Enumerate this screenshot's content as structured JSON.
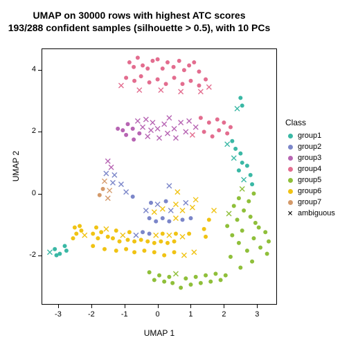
{
  "title_line1": "UMAP on 30000 rows with highest ATC scores",
  "title_line2": "193/288 confident samples (silhouette > 0.5), with 10 PCs",
  "xlabel": "UMAP 1",
  "ylabel": "UMAP 2",
  "legend_title": "Class",
  "chart": {
    "type": "scatter",
    "xlim": [
      -3.5,
      3.6
    ],
    "ylim": [
      -3.6,
      4.7
    ],
    "xticks": [
      -3,
      -2,
      -1,
      0,
      1,
      2,
      3
    ],
    "yticks": [
      -2,
      0,
      2,
      4
    ],
    "background_color": "#ffffff",
    "border_color": "#000000",
    "tick_length": 5,
    "label_fontsize": 12,
    "tick_fontsize": 11,
    "title_fontsize": 14,
    "marker_size": 6,
    "classes": [
      {
        "id": "group1",
        "label": "group1",
        "color": "#3ab8a5",
        "marker": "dot"
      },
      {
        "id": "group2",
        "label": "group2",
        "color": "#7b86c9",
        "marker": "dot"
      },
      {
        "id": "group3",
        "label": "group3",
        "color": "#b765b3",
        "marker": "dot"
      },
      {
        "id": "group4",
        "label": "group4",
        "color": "#e36d8f",
        "marker": "dot"
      },
      {
        "id": "group5",
        "label": "group5",
        "color": "#8fbf3a",
        "marker": "dot"
      },
      {
        "id": "group6",
        "label": "group6",
        "color": "#f0c314",
        "marker": "dot"
      },
      {
        "id": "group7",
        "label": "group7",
        "color": "#d49a6a",
        "marker": "dot"
      },
      {
        "id": "ambiguous",
        "label": "ambiguous",
        "color": "#808080",
        "marker": "x"
      }
    ],
    "points": [
      {
        "x": -0.85,
        "y": 4.25,
        "c": "group4"
      },
      {
        "x": -0.72,
        "y": 4.1,
        "c": "group4"
      },
      {
        "x": -0.6,
        "y": 4.4,
        "c": "group4"
      },
      {
        "x": -0.45,
        "y": 4.15,
        "c": "group4"
      },
      {
        "x": -0.3,
        "y": 4.05,
        "c": "group4"
      },
      {
        "x": -0.15,
        "y": 4.3,
        "c": "group4"
      },
      {
        "x": 0.0,
        "y": 4.35,
        "c": "group4"
      },
      {
        "x": 0.15,
        "y": 4.05,
        "c": "group4"
      },
      {
        "x": 0.3,
        "y": 4.25,
        "c": "group4"
      },
      {
        "x": 0.48,
        "y": 4.1,
        "c": "group4"
      },
      {
        "x": 0.65,
        "y": 4.3,
        "c": "group4"
      },
      {
        "x": 0.8,
        "y": 4.0,
        "c": "group4"
      },
      {
        "x": 0.95,
        "y": 4.15,
        "c": "group4"
      },
      {
        "x": 1.1,
        "y": 4.25,
        "c": "group4"
      },
      {
        "x": 1.25,
        "y": 3.95,
        "c": "group4"
      },
      {
        "x": -0.95,
        "y": 3.75,
        "c": "group4"
      },
      {
        "x": -0.7,
        "y": 3.65,
        "c": "group4"
      },
      {
        "x": -0.5,
        "y": 3.8,
        "c": "group4"
      },
      {
        "x": -0.25,
        "y": 3.6,
        "c": "group4"
      },
      {
        "x": 0.0,
        "y": 3.7,
        "c": "group4"
      },
      {
        "x": 0.25,
        "y": 3.55,
        "c": "group4"
      },
      {
        "x": 0.5,
        "y": 3.75,
        "c": "group4"
      },
      {
        "x": 0.75,
        "y": 3.55,
        "c": "group4"
      },
      {
        "x": 1.0,
        "y": 3.65,
        "c": "group4"
      },
      {
        "x": 1.25,
        "y": 3.5,
        "c": "group4"
      },
      {
        "x": 1.45,
        "y": 3.7,
        "c": "group4"
      },
      {
        "x": -1.1,
        "y": 3.5,
        "c": "group4",
        "m": "x"
      },
      {
        "x": -0.55,
        "y": 3.35,
        "c": "group4",
        "m": "x"
      },
      {
        "x": 0.1,
        "y": 3.35,
        "c": "group4",
        "m": "x"
      },
      {
        "x": 0.7,
        "y": 3.3,
        "c": "group4",
        "m": "x"
      },
      {
        "x": 1.3,
        "y": 3.3,
        "c": "group4",
        "m": "x"
      },
      {
        "x": 1.55,
        "y": 3.45,
        "c": "group4",
        "m": "x"
      },
      {
        "x": -1.2,
        "y": 2.1,
        "c": "group3"
      },
      {
        "x": -1.05,
        "y": 2.05,
        "c": "group3"
      },
      {
        "x": -0.95,
        "y": 1.9,
        "c": "group3"
      },
      {
        "x": -0.9,
        "y": 2.25,
        "c": "group3"
      },
      {
        "x": -0.75,
        "y": 2.1,
        "c": "group3"
      },
      {
        "x": -0.72,
        "y": 1.75,
        "c": "group3"
      },
      {
        "x": -0.6,
        "y": 2.35,
        "c": "group3",
        "m": "x"
      },
      {
        "x": -0.55,
        "y": 1.95,
        "c": "group3"
      },
      {
        "x": -0.45,
        "y": 2.15,
        "c": "group3",
        "m": "x"
      },
      {
        "x": -0.35,
        "y": 2.4,
        "c": "group3",
        "m": "x"
      },
      {
        "x": -0.3,
        "y": 1.85,
        "c": "group3",
        "m": "x"
      },
      {
        "x": -0.2,
        "y": 2.05,
        "c": "group3",
        "m": "x"
      },
      {
        "x": -0.15,
        "y": 2.3,
        "c": "group3",
        "m": "x"
      },
      {
        "x": 0.0,
        "y": 2.1,
        "c": "group3",
        "m": "x"
      },
      {
        "x": 0.05,
        "y": 1.8,
        "c": "group3",
        "m": "x"
      },
      {
        "x": 0.2,
        "y": 2.25,
        "c": "group3",
        "m": "x"
      },
      {
        "x": 0.3,
        "y": 1.95,
        "c": "group3",
        "m": "x"
      },
      {
        "x": 0.35,
        "y": 2.45,
        "c": "group3",
        "m": "x"
      },
      {
        "x": 0.5,
        "y": 2.1,
        "c": "group3",
        "m": "x"
      },
      {
        "x": 0.55,
        "y": 1.8,
        "c": "group3",
        "m": "x"
      },
      {
        "x": 0.7,
        "y": 2.3,
        "c": "group3",
        "m": "x"
      },
      {
        "x": 0.85,
        "y": 2.0,
        "c": "group3",
        "m": "x"
      },
      {
        "x": 0.95,
        "y": 2.35,
        "c": "group3",
        "m": "x"
      },
      {
        "x": 1.05,
        "y": 1.9,
        "c": "group4",
        "m": "x"
      },
      {
        "x": 1.15,
        "y": 2.15,
        "c": "group3",
        "m": "x"
      },
      {
        "x": 1.3,
        "y": 2.45,
        "c": "group4"
      },
      {
        "x": 1.4,
        "y": 2.0,
        "c": "group4"
      },
      {
        "x": 1.55,
        "y": 2.3,
        "c": "group4"
      },
      {
        "x": 1.65,
        "y": 1.85,
        "c": "group4"
      },
      {
        "x": 1.8,
        "y": 2.4,
        "c": "group4"
      },
      {
        "x": 1.85,
        "y": 2.05,
        "c": "group4"
      },
      {
        "x": 2.0,
        "y": 2.3,
        "c": "group4"
      },
      {
        "x": 2.1,
        "y": 1.95,
        "c": "group4"
      },
      {
        "x": 2.2,
        "y": 2.15,
        "c": "group4"
      },
      {
        "x": 2.5,
        "y": 3.1,
        "c": "group1"
      },
      {
        "x": 2.55,
        "y": 2.85,
        "c": "group1"
      },
      {
        "x": 2.4,
        "y": 2.75,
        "c": "group1",
        "m": "x"
      },
      {
        "x": 2.1,
        "y": 1.6,
        "c": "group1",
        "m": "x"
      },
      {
        "x": 2.25,
        "y": 1.7,
        "c": "group1"
      },
      {
        "x": 2.35,
        "y": 1.45,
        "c": "group1"
      },
      {
        "x": 2.5,
        "y": 1.3,
        "c": "group1"
      },
      {
        "x": 2.3,
        "y": 1.15,
        "c": "group1",
        "m": "x"
      },
      {
        "x": 2.55,
        "y": 1.0,
        "c": "group1"
      },
      {
        "x": 2.7,
        "y": 0.9,
        "c": "group1"
      },
      {
        "x": 2.45,
        "y": 0.75,
        "c": "group1"
      },
      {
        "x": 2.8,
        "y": 0.6,
        "c": "group1"
      },
      {
        "x": 2.6,
        "y": 0.45,
        "c": "group1",
        "m": "x"
      },
      {
        "x": 2.85,
        "y": 0.3,
        "c": "group1"
      },
      {
        "x": 2.55,
        "y": 0.15,
        "c": "group5",
        "m": "x"
      },
      {
        "x": 2.9,
        "y": 0.0,
        "c": "group5"
      },
      {
        "x": 2.45,
        "y": -0.15,
        "c": "group5"
      },
      {
        "x": 2.75,
        "y": -0.25,
        "c": "group5"
      },
      {
        "x": 2.3,
        "y": -0.4,
        "c": "group5"
      },
      {
        "x": 2.6,
        "y": -0.55,
        "c": "group5"
      },
      {
        "x": 2.15,
        "y": -0.65,
        "c": "group5",
        "m": "x"
      },
      {
        "x": 2.8,
        "y": -0.75,
        "c": "group5"
      },
      {
        "x": 2.4,
        "y": -0.85,
        "c": "group5"
      },
      {
        "x": 2.95,
        "y": -0.95,
        "c": "group5"
      },
      {
        "x": 2.1,
        "y": -1.05,
        "c": "group5"
      },
      {
        "x": 3.05,
        "y": -1.1,
        "c": "group5"
      },
      {
        "x": 2.55,
        "y": -1.2,
        "c": "group5"
      },
      {
        "x": 3.25,
        "y": -1.25,
        "c": "group5"
      },
      {
        "x": 2.25,
        "y": -1.35,
        "c": "group5"
      },
      {
        "x": 2.9,
        "y": -1.45,
        "c": "group5"
      },
      {
        "x": 3.35,
        "y": -1.55,
        "c": "group5"
      },
      {
        "x": 2.45,
        "y": -1.6,
        "c": "group5"
      },
      {
        "x": 3.1,
        "y": -1.75,
        "c": "group5"
      },
      {
        "x": 2.7,
        "y": -1.85,
        "c": "group5"
      },
      {
        "x": 3.3,
        "y": -1.95,
        "c": "group5"
      },
      {
        "x": 2.2,
        "y": -2.05,
        "c": "group5"
      },
      {
        "x": 2.85,
        "y": -2.2,
        "c": "group5"
      },
      {
        "x": 2.5,
        "y": -2.4,
        "c": "group5"
      },
      {
        "x": 1.15,
        "y": -0.2,
        "c": "group6",
        "m": "x"
      },
      {
        "x": 1.05,
        "y": -0.45,
        "c": "group6",
        "m": "x"
      },
      {
        "x": 0.85,
        "y": -0.3,
        "c": "group2",
        "m": "x"
      },
      {
        "x": 0.75,
        "y": -0.55,
        "c": "group6",
        "m": "x"
      },
      {
        "x": 0.55,
        "y": -0.35,
        "c": "group6",
        "m": "x"
      },
      {
        "x": 0.4,
        "y": -0.55,
        "c": "group2",
        "m": "x"
      },
      {
        "x": 0.25,
        "y": -0.25,
        "c": "group2"
      },
      {
        "x": 0.15,
        "y": -0.5,
        "c": "group6",
        "m": "x"
      },
      {
        "x": 0.0,
        "y": -0.35,
        "c": "group2",
        "m": "x"
      },
      {
        "x": -0.1,
        "y": -0.6,
        "c": "group6",
        "m": "x"
      },
      {
        "x": -0.2,
        "y": -0.3,
        "c": "group2"
      },
      {
        "x": -0.35,
        "y": -0.55,
        "c": "group2",
        "m": "x"
      },
      {
        "x": 1.0,
        "y": -0.8,
        "c": "group2"
      },
      {
        "x": 0.75,
        "y": -0.85,
        "c": "group2"
      },
      {
        "x": 0.55,
        "y": -0.8,
        "c": "group6",
        "m": "x"
      },
      {
        "x": 0.35,
        "y": -0.9,
        "c": "group2"
      },
      {
        "x": 0.15,
        "y": -0.8,
        "c": "group2"
      },
      {
        "x": -0.05,
        "y": -0.9,
        "c": "group2"
      },
      {
        "x": -0.25,
        "y": -0.8,
        "c": "group2"
      },
      {
        "x": 1.55,
        "y": -0.85,
        "c": "group6"
      },
      {
        "x": 1.7,
        "y": -0.55,
        "c": "group6",
        "m": "x"
      },
      {
        "x": -1.5,
        "y": 1.05,
        "c": "group3",
        "m": "x"
      },
      {
        "x": -1.4,
        "y": 0.85,
        "c": "group3",
        "m": "x"
      },
      {
        "x": -1.55,
        "y": 0.65,
        "c": "group2",
        "m": "x"
      },
      {
        "x": -1.3,
        "y": 0.6,
        "c": "group2",
        "m": "x"
      },
      {
        "x": -1.6,
        "y": 0.4,
        "c": "group7",
        "m": "x"
      },
      {
        "x": -1.35,
        "y": 0.35,
        "c": "group2",
        "m": "x"
      },
      {
        "x": -1.65,
        "y": 0.15,
        "c": "group7"
      },
      {
        "x": -1.45,
        "y": 0.1,
        "c": "group7",
        "m": "x"
      },
      {
        "x": -1.75,
        "y": -0.05,
        "c": "group7"
      },
      {
        "x": -1.5,
        "y": -0.15,
        "c": "group7",
        "m": "x"
      },
      {
        "x": -2.8,
        "y": -1.7,
        "c": "group1"
      },
      {
        "x": -2.75,
        "y": -1.85,
        "c": "group1"
      },
      {
        "x": -2.95,
        "y": -1.95,
        "c": "group1"
      },
      {
        "x": -3.1,
        "y": -1.8,
        "c": "group1"
      },
      {
        "x": -3.05,
        "y": -2.0,
        "c": "group1"
      },
      {
        "x": -3.25,
        "y": -1.9,
        "c": "group1",
        "m": "x"
      },
      {
        "x": -2.35,
        "y": -1.05,
        "c": "group6"
      },
      {
        "x": -2.3,
        "y": -1.2,
        "c": "group6"
      },
      {
        "x": -2.5,
        "y": -1.1,
        "c": "group6"
      },
      {
        "x": -2.45,
        "y": -1.3,
        "c": "group6"
      },
      {
        "x": -2.2,
        "y": -1.35,
        "c": "group6",
        "m": "x"
      },
      {
        "x": -2.55,
        "y": -1.45,
        "c": "group6"
      },
      {
        "x": -1.85,
        "y": -1.1,
        "c": "group6"
      },
      {
        "x": -1.7,
        "y": -1.25,
        "c": "group6"
      },
      {
        "x": -1.95,
        "y": -1.3,
        "c": "group6"
      },
      {
        "x": -1.55,
        "y": -1.15,
        "c": "group6",
        "m": "x"
      },
      {
        "x": -1.8,
        "y": -1.45,
        "c": "group6"
      },
      {
        "x": -1.5,
        "y": -1.4,
        "c": "group6"
      },
      {
        "x": -1.25,
        "y": -1.2,
        "c": "group6"
      },
      {
        "x": -1.35,
        "y": -1.45,
        "c": "group6"
      },
      {
        "x": -1.05,
        "y": -1.35,
        "c": "group6",
        "m": "x"
      },
      {
        "x": -1.15,
        "y": -1.55,
        "c": "group6"
      },
      {
        "x": -0.85,
        "y": -1.25,
        "c": "group6"
      },
      {
        "x": -0.9,
        "y": -1.5,
        "c": "group6"
      },
      {
        "x": -0.65,
        "y": -1.35,
        "c": "group2",
        "m": "x"
      },
      {
        "x": -0.7,
        "y": -1.55,
        "c": "group6"
      },
      {
        "x": -0.45,
        "y": -1.25,
        "c": "group2"
      },
      {
        "x": -0.5,
        "y": -1.5,
        "c": "group6"
      },
      {
        "x": -0.25,
        "y": -1.3,
        "c": "group2"
      },
      {
        "x": -0.3,
        "y": -1.55,
        "c": "group6"
      },
      {
        "x": -0.05,
        "y": -1.35,
        "c": "group6",
        "m": "x"
      },
      {
        "x": -0.1,
        "y": -1.6,
        "c": "group6"
      },
      {
        "x": 0.15,
        "y": -1.3,
        "c": "group6"
      },
      {
        "x": 0.1,
        "y": -1.55,
        "c": "group6"
      },
      {
        "x": 0.35,
        "y": -1.35,
        "c": "group6",
        "m": "x"
      },
      {
        "x": 0.3,
        "y": -1.6,
        "c": "group6"
      },
      {
        "x": 0.55,
        "y": -1.3,
        "c": "group6"
      },
      {
        "x": 0.5,
        "y": -1.55,
        "c": "group6"
      },
      {
        "x": 0.75,
        "y": -1.4,
        "c": "group6",
        "m": "x"
      },
      {
        "x": 0.95,
        "y": -1.3,
        "c": "group6"
      },
      {
        "x": 1.4,
        "y": -1.15,
        "c": "group6"
      },
      {
        "x": 1.45,
        "y": -1.4,
        "c": "group6"
      },
      {
        "x": -1.95,
        "y": -1.7,
        "c": "group6"
      },
      {
        "x": -1.6,
        "y": -1.8,
        "c": "group6"
      },
      {
        "x": -1.25,
        "y": -1.85,
        "c": "group6"
      },
      {
        "x": -0.95,
        "y": -1.8,
        "c": "group6"
      },
      {
        "x": -0.7,
        "y": -1.9,
        "c": "group6"
      },
      {
        "x": -0.4,
        "y": -1.85,
        "c": "group6"
      },
      {
        "x": -0.1,
        "y": -1.9,
        "c": "group6"
      },
      {
        "x": 0.2,
        "y": -2.0,
        "c": "group6"
      },
      {
        "x": 0.5,
        "y": -1.9,
        "c": "group6"
      },
      {
        "x": 0.8,
        "y": -2.0,
        "c": "group6",
        "m": "x"
      },
      {
        "x": 1.1,
        "y": -1.9,
        "c": "group6",
        "m": "x"
      },
      {
        "x": -0.25,
        "y": -2.55,
        "c": "group5"
      },
      {
        "x": -0.1,
        "y": -2.8,
        "c": "group5"
      },
      {
        "x": 0.05,
        "y": -2.65,
        "c": "group5"
      },
      {
        "x": 0.2,
        "y": -2.85,
        "c": "group5"
      },
      {
        "x": 0.35,
        "y": -2.7,
        "c": "group5"
      },
      {
        "x": 0.45,
        "y": -2.9,
        "c": "group5"
      },
      {
        "x": 0.55,
        "y": -2.6,
        "c": "group5",
        "m": "x"
      },
      {
        "x": 0.7,
        "y": -3.05,
        "c": "group5"
      },
      {
        "x": 0.85,
        "y": -2.75,
        "c": "group5"
      },
      {
        "x": 1.0,
        "y": -2.95,
        "c": "group5"
      },
      {
        "x": 1.15,
        "y": -2.7,
        "c": "group5"
      },
      {
        "x": 1.3,
        "y": -2.9,
        "c": "group5"
      },
      {
        "x": 1.45,
        "y": -2.65,
        "c": "group5"
      },
      {
        "x": 1.6,
        "y": -2.85,
        "c": "group5"
      },
      {
        "x": 1.75,
        "y": -2.6,
        "c": "group5"
      },
      {
        "x": 1.9,
        "y": -2.8,
        "c": "group5"
      },
      {
        "x": 2.05,
        "y": -2.65,
        "c": "group5"
      },
      {
        "x": -1.1,
        "y": 0.3,
        "c": "group2",
        "m": "x"
      },
      {
        "x": -0.95,
        "y": 0.05,
        "c": "group2",
        "m": "x"
      },
      {
        "x": -0.75,
        "y": -0.1,
        "c": "group2"
      },
      {
        "x": 0.35,
        "y": 0.25,
        "c": "group2",
        "m": "x"
      },
      {
        "x": 0.6,
        "y": 0.05,
        "c": "group6",
        "m": "x"
      }
    ]
  }
}
